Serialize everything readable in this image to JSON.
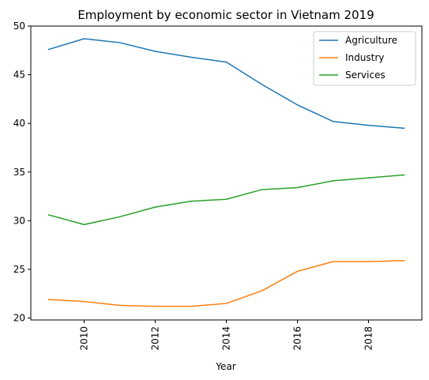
{
  "chart_data": {
    "type": "line",
    "title": "Employment by economic sector in Vietnam 2019",
    "xlabel": "Year",
    "ylabel": "",
    "xlim": [
      2008.5,
      2019.5
    ],
    "ylim": [
      19.8,
      50.0
    ],
    "xticks": [
      2010,
      2012,
      2014,
      2016,
      2018
    ],
    "yticks": [
      20,
      25,
      30,
      35,
      40,
      45,
      50
    ],
    "grid": false,
    "legend_position": "top-right",
    "x": [
      2009,
      2010,
      2011,
      2012,
      2013,
      2014,
      2015,
      2016,
      2017,
      2018,
      2019
    ],
    "series": [
      {
        "name": "Agriculture",
        "color": "#1f77b4",
        "values": [
          47.6,
          48.7,
          48.3,
          47.4,
          46.8,
          46.3,
          44.0,
          41.9,
          40.2,
          39.8,
          39.5
        ]
      },
      {
        "name": "Industry",
        "color": "#ff7f0e",
        "values": [
          21.9,
          21.7,
          21.3,
          21.2,
          21.2,
          21.5,
          22.8,
          24.8,
          25.8,
          25.8,
          25.9
        ]
      },
      {
        "name": "Services",
        "color": "#2ca02c",
        "values": [
          30.6,
          29.6,
          30.4,
          31.4,
          32.0,
          32.2,
          33.2,
          33.4,
          34.1,
          34.4,
          34.7
        ]
      }
    ]
  }
}
